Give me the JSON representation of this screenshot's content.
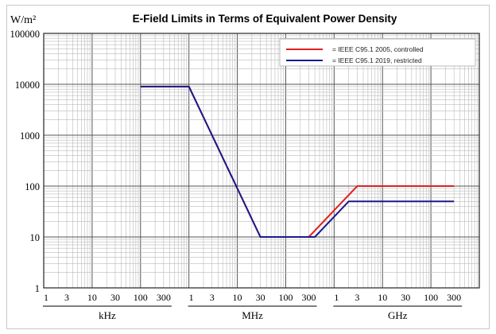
{
  "chart_data": {
    "type": "line",
    "title": "E-Field Limits in Terms of Equivalent Power Density",
    "ylabel": "W/m²",
    "yscale": "log",
    "xscale": "log",
    "ylim": [
      1,
      100000
    ],
    "xlim_hz": [
      1000,
      1000000000000
    ],
    "yticks": [
      "1",
      "10",
      "100",
      "1000",
      "10000",
      "100000"
    ],
    "xtick_groups": [
      {
        "unit": "kHz",
        "ticks": [
          "1",
          "3",
          "10",
          "30",
          "100",
          "300"
        ]
      },
      {
        "unit": "MHz",
        "ticks": [
          "1",
          "3",
          "10",
          "30",
          "100",
          "300"
        ]
      },
      {
        "unit": "GHz",
        "ticks": [
          "1",
          "3",
          "10",
          "30",
          "100",
          "300"
        ]
      }
    ],
    "grid": true,
    "legend_position": "top-right",
    "series": [
      {
        "name": "= IEEE C95.1 2005, controlled",
        "color": "#e02020",
        "x_mhz": [
          0.1,
          1,
          30,
          300,
          3000,
          300000
        ],
        "y": [
          9000,
          9000,
          10,
          10,
          100,
          100
        ]
      },
      {
        "name": "= IEEE C95.1 2019, restricted",
        "color": "#1a1a8c",
        "x_mhz": [
          0.1,
          1,
          30,
          400,
          2000,
          300000
        ],
        "y": [
          9000,
          9000,
          10,
          10,
          50,
          50
        ]
      }
    ]
  }
}
